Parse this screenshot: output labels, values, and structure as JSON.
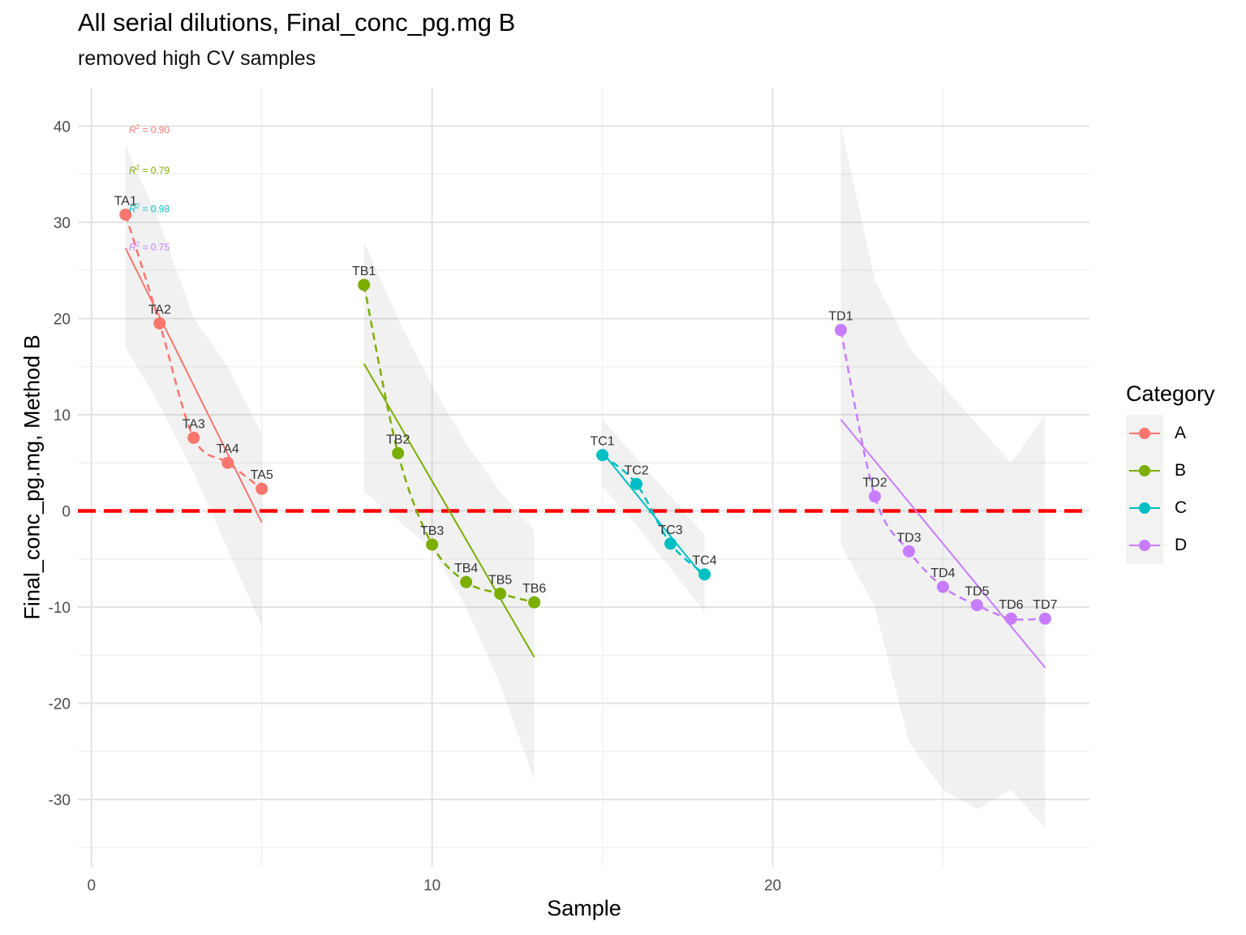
{
  "chart_data": {
    "type": "line",
    "title": "All serial dilutions, Final_conc_pg.mg B",
    "subtitle": "removed high CV samples",
    "xlabel": "Sample",
    "ylabel": "Final_conc_pg.mg, Method B",
    "xlim": [
      -0.4,
      29.3
    ],
    "ylim": [
      -37,
      44
    ],
    "x_ticks": [
      0,
      10,
      20
    ],
    "y_ticks": [
      40,
      30,
      20,
      10,
      0,
      -10,
      -20,
      -30
    ],
    "grid": true,
    "reference_line": {
      "y": 0,
      "color": "#ff0000",
      "style": "dashed"
    },
    "legend": {
      "title": "Category",
      "position": "right"
    },
    "series": [
      {
        "name": "A",
        "color": "#f8766d",
        "points": [
          {
            "x": 1,
            "y": 30.8,
            "label": "TA1"
          },
          {
            "x": 2,
            "y": 19.5,
            "label": "TA2"
          },
          {
            "x": 3,
            "y": 7.6,
            "label": "TA3"
          },
          {
            "x": 4,
            "y": 5.0,
            "label": "TA4"
          },
          {
            "x": 5,
            "y": 2.3,
            "label": "TA5"
          }
        ],
        "fit": {
          "x0": 1,
          "y0": 27.3,
          "x1": 5,
          "y1": -1.2
        },
        "ribbon": {
          "x": [
            1,
            2,
            3,
            4,
            5
          ],
          "upper": [
            38,
            30,
            20,
            15,
            8
          ],
          "lower": [
            17,
            11,
            4,
            -4,
            -12
          ]
        },
        "r2_label": "= 0.90",
        "r2_y": 39.6
      },
      {
        "name": "B",
        "color": "#7cae00",
        "points": [
          {
            "x": 8,
            "y": 23.5,
            "label": "TB1"
          },
          {
            "x": 9,
            "y": 6.0,
            "label": "TB2"
          },
          {
            "x": 10,
            "y": -3.5,
            "label": "TB3"
          },
          {
            "x": 11,
            "y": -7.4,
            "label": "TB4"
          },
          {
            "x": 12,
            "y": -8.6,
            "label": "TB5"
          },
          {
            "x": 13,
            "y": -9.5,
            "label": "TB6"
          }
        ],
        "fit": {
          "x0": 8,
          "y0": 15.3,
          "x1": 13,
          "y1": -15.2
        },
        "ribbon": {
          "x": [
            8,
            9,
            10,
            11,
            12,
            13
          ],
          "upper": [
            28,
            20,
            13,
            7,
            2,
            -2
          ],
          "lower": [
            2,
            -1,
            -4,
            -10,
            -18,
            -28
          ]
        },
        "r2_label": "= 0.79",
        "r2_y": 35.4
      },
      {
        "name": "C",
        "color": "#00bfc4",
        "points": [
          {
            "x": 15,
            "y": 5.8,
            "label": "TC1"
          },
          {
            "x": 16,
            "y": 2.8,
            "label": "TC2"
          },
          {
            "x": 17,
            "y": -3.4,
            "label": "TC3"
          },
          {
            "x": 18,
            "y": -6.6,
            "label": "TC4"
          }
        ],
        "fit": {
          "x0": 15,
          "y0": 6.1,
          "x1": 18,
          "y1": -7.0
        },
        "ribbon": {
          "x": [
            15,
            16,
            17,
            18
          ],
          "upper": [
            9.5,
            5.5,
            1.5,
            -2.5
          ],
          "lower": [
            2.5,
            -1.5,
            -6,
            -10.5
          ]
        },
        "r2_label": "= 0.98",
        "r2_y": 31.4
      },
      {
        "name": "D",
        "color": "#c77cff",
        "points": [
          {
            "x": 22,
            "y": 18.8,
            "label": "TD1"
          },
          {
            "x": 23,
            "y": 1.5,
            "label": "TD2"
          },
          {
            "x": 24,
            "y": -4.2,
            "label": "TD3"
          },
          {
            "x": 25,
            "y": -7.9,
            "label": "TD4"
          },
          {
            "x": 26,
            "y": -9.8,
            "label": "TD5"
          },
          {
            "x": 27,
            "y": -11.2,
            "label": "TD6"
          },
          {
            "x": 28,
            "y": -11.2,
            "label": "TD7"
          }
        ],
        "fit": {
          "x0": 22,
          "y0": 9.5,
          "x1": 28,
          "y1": -16.3
        },
        "ribbon": {
          "x": [
            22,
            23,
            24,
            25,
            26,
            27,
            28
          ],
          "upper": [
            40,
            24,
            17,
            13,
            9,
            5,
            10
          ],
          "lower": [
            -3.5,
            -10,
            -24,
            -29,
            -31,
            -29,
            -33
          ]
        },
        "r2_label": "= 0.75",
        "r2_y": 27.4
      }
    ]
  }
}
